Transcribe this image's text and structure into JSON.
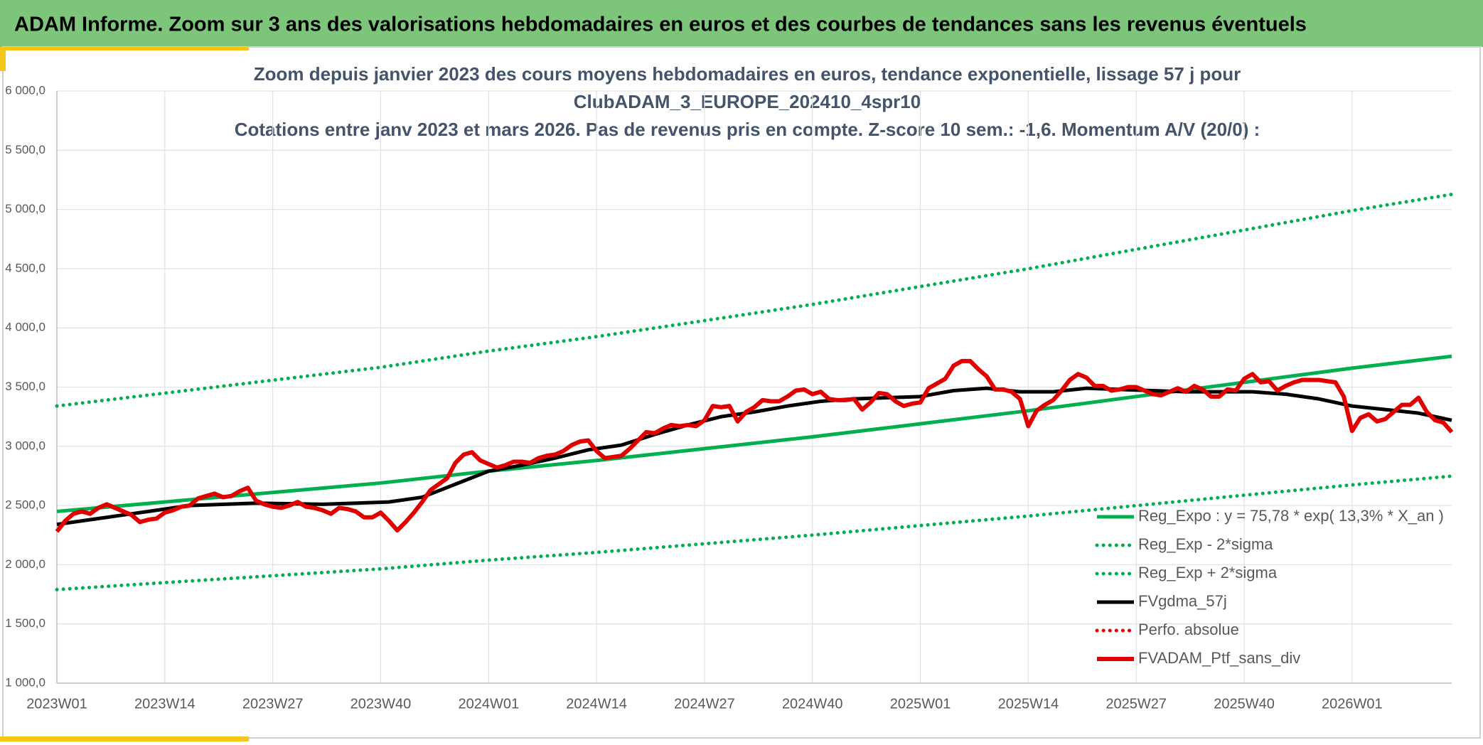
{
  "header": {
    "title": "ADAM Informe. Zoom sur 3 ans des valorisations hebdomadaires en euros et des courbes de tendances sans les revenus éventuels"
  },
  "chart_data": {
    "type": "line",
    "title": [
      "Zoom depuis janvier 2023 des cours moyens hebdomadaires en euros, tendance exponentielle, lissage 57 j pour",
      "ClubADAM_3_EUROPE_202410_4spr10",
      "Cotations entre janv 2023 et mars 2026. Pas de revenus pris en compte. Z-score 10 sem.: -1,6. Momentum A/V (20/0) :"
    ],
    "xlim": [
      0,
      168
    ],
    "xticks": [
      {
        "value": 0,
        "label": "2023W01"
      },
      {
        "value": 13,
        "label": "2023W14"
      },
      {
        "value": 26,
        "label": "2023W27"
      },
      {
        "value": 39,
        "label": "2023W40"
      },
      {
        "value": 52,
        "label": "2024W01"
      },
      {
        "value": 65,
        "label": "2024W14"
      },
      {
        "value": 78,
        "label": "2024W27"
      },
      {
        "value": 91,
        "label": "2024W40"
      },
      {
        "value": 104,
        "label": "2025W01"
      },
      {
        "value": 117,
        "label": "2025W14"
      },
      {
        "value": 130,
        "label": "2025W27"
      },
      {
        "value": 143,
        "label": "2025W40"
      },
      {
        "value": 156,
        "label": "2026W01"
      }
    ],
    "ylim": [
      1000,
      6000
    ],
    "yticks": [
      {
        "value": 1000,
        "label": "1 000,0"
      },
      {
        "value": 1500,
        "label": "1 500,0"
      },
      {
        "value": 2000,
        "label": "2 000,0"
      },
      {
        "value": 2500,
        "label": "2 500,0"
      },
      {
        "value": 3000,
        "label": "3 000,0"
      },
      {
        "value": 3500,
        "label": "3 500,0"
      },
      {
        "value": 4000,
        "label": "4 000,0"
      },
      {
        "value": 4500,
        "label": "4 500,0"
      },
      {
        "value": 5000,
        "label": "5 000,0"
      },
      {
        "value": 5500,
        "label": "5 500,0"
      },
      {
        "value": 6000,
        "label": "6 000,0"
      }
    ],
    "grid": true,
    "legend": "lower-right",
    "series": [
      {
        "name": "Reg_Expo : y = 75,78 * exp( 13,3% *  X_an )",
        "color": "#00b050",
        "dash": "solid",
        "x": [
          0,
          13,
          26,
          39,
          52,
          65,
          78,
          91,
          104,
          117,
          130,
          143,
          156,
          168
        ],
        "values": [
          2450,
          2530,
          2610,
          2690,
          2790,
          2880,
          2980,
          3080,
          3190,
          3300,
          3420,
          3540,
          3660,
          3760
        ]
      },
      {
        "name": "Reg_Exp - 2*sigma",
        "color": "#00b050",
        "dash": "dotted",
        "x": [
          0,
          13,
          26,
          39,
          52,
          65,
          78,
          91,
          104,
          117,
          130,
          143,
          156,
          168
        ],
        "values": [
          1790,
          1849,
          1907,
          1965,
          2039,
          2104,
          2177,
          2250,
          2331,
          2411,
          2499,
          2587,
          2674,
          2748
        ]
      },
      {
        "name": "Reg_Exp + 2*sigma",
        "color": "#00b050",
        "dash": "dotted",
        "x": [
          0,
          13,
          26,
          39,
          52,
          65,
          78,
          91,
          104,
          117,
          130,
          143,
          156,
          168
        ],
        "values": [
          3340,
          3449,
          3558,
          3667,
          3804,
          3926,
          4061,
          4198,
          4349,
          4499,
          4663,
          4826,
          4990,
          5127
        ]
      },
      {
        "name": "FVgdma_57j",
        "color": "#000000",
        "dash": "solid",
        "x": [
          0,
          8,
          16,
          24,
          32,
          40,
          44,
          48,
          52,
          56,
          60,
          64,
          68,
          72,
          76,
          80,
          84,
          88,
          92,
          96,
          100,
          104,
          108,
          112,
          116,
          120,
          124,
          128,
          132,
          136,
          140,
          144,
          148,
          152,
          156,
          160,
          164,
          168
        ],
        "values": [
          2340,
          2420,
          2500,
          2520,
          2510,
          2530,
          2570,
          2680,
          2790,
          2840,
          2900,
          2970,
          3010,
          3100,
          3180,
          3250,
          3290,
          3340,
          3380,
          3400,
          3410,
          3420,
          3470,
          3490,
          3460,
          3460,
          3490,
          3480,
          3470,
          3460,
          3460,
          3460,
          3440,
          3400,
          3340,
          3310,
          3280,
          3220
        ]
      },
      {
        "name": "Perfo. absolue",
        "color": "#e00000",
        "dash": "dotted",
        "x": [],
        "values": []
      },
      {
        "name": "FVADAM_Ptf_sans_div",
        "color": "#e00000",
        "dash": "solid",
        "x": [
          0,
          1,
          2,
          3,
          4,
          5,
          6,
          7,
          8,
          9,
          10,
          11,
          12,
          13,
          14,
          15,
          16,
          17,
          18,
          19,
          20,
          21,
          22,
          23,
          24,
          25,
          26,
          27,
          28,
          29,
          30,
          31,
          32,
          33,
          34,
          35,
          36,
          37,
          38,
          39,
          40,
          41,
          42,
          43,
          44,
          45,
          46,
          47,
          48,
          49,
          50,
          51,
          52,
          53,
          54,
          55,
          56,
          57,
          58,
          59,
          60,
          61,
          62,
          63,
          64,
          65,
          66,
          67,
          68,
          69,
          70,
          71,
          72,
          73,
          74,
          75,
          76,
          77,
          78,
          79,
          80,
          81,
          82,
          83,
          84,
          85,
          86,
          87,
          88,
          89,
          90,
          91,
          92,
          93,
          94,
          95,
          96,
          97,
          98,
          99,
          100,
          101,
          102,
          103,
          104,
          105,
          106,
          107,
          108,
          109,
          110,
          111,
          112,
          113,
          114,
          115,
          116,
          117,
          118,
          119,
          120,
          121,
          122,
          123,
          124,
          125,
          126,
          127,
          128,
          129,
          130,
          131,
          132,
          133,
          134,
          135,
          136,
          137,
          138,
          139,
          140,
          141,
          142,
          143,
          144,
          145,
          146,
          147,
          148,
          149,
          150,
          151,
          152,
          153,
          154,
          155,
          156,
          157,
          158,
          159,
          160,
          161,
          162,
          163,
          164,
          165,
          166,
          167,
          168
        ],
        "values": [
          2280,
          2370,
          2430,
          2450,
          2430,
          2480,
          2510,
          2480,
          2450,
          2420,
          2360,
          2380,
          2390,
          2440,
          2460,
          2490,
          2500,
          2560,
          2580,
          2600,
          2570,
          2580,
          2620,
          2650,
          2540,
          2510,
          2490,
          2480,
          2500,
          2530,
          2490,
          2480,
          2460,
          2430,
          2480,
          2470,
          2450,
          2400,
          2400,
          2440,
          2370,
          2290,
          2360,
          2440,
          2530,
          2630,
          2680,
          2730,
          2860,
          2930,
          2950,
          2880,
          2850,
          2820,
          2840,
          2870,
          2870,
          2860,
          2900,
          2920,
          2930,
          2960,
          3010,
          3040,
          3050,
          2960,
          2900,
          2910,
          2920,
          2980,
          3050,
          3120,
          3110,
          3150,
          3180,
          3170,
          3180,
          3170,
          3220,
          3340,
          3330,
          3340,
          3210,
          3290,
          3330,
          3390,
          3380,
          3380,
          3420,
          3470,
          3480,
          3440,
          3460,
          3400,
          3390,
          3390,
          3400,
          3310,
          3370,
          3450,
          3440,
          3380,
          3340,
          3360,
          3370,
          3490,
          3530,
          3570,
          3680,
          3720,
          3720,
          3650,
          3590,
          3480,
          3480,
          3460,
          3400,
          3170,
          3300,
          3350,
          3390,
          3470,
          3560,
          3610,
          3580,
          3510,
          3510,
          3470,
          3480,
          3500,
          3500,
          3470,
          3440,
          3430,
          3460,
          3490,
          3460,
          3510,
          3480,
          3420,
          3420,
          3480,
          3470,
          3570,
          3610,
          3540,
          3550,
          3470,
          3510,
          3540,
          3560,
          3560,
          3560,
          3550,
          3540,
          3420,
          3130,
          3240,
          3270,
          3210,
          3230,
          3290,
          3350,
          3350,
          3410,
          3290,
          3220,
          3200,
          3120
        ]
      }
    ]
  }
}
